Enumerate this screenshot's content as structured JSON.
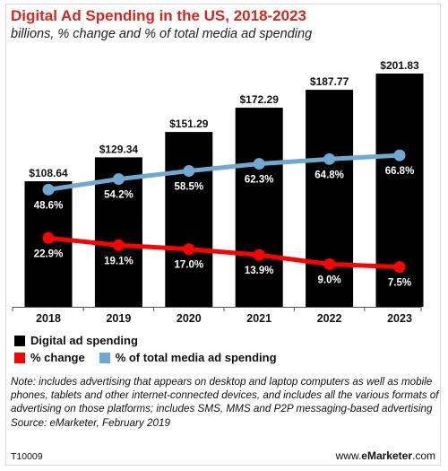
{
  "title": "Digital Ad Spending in the US, 2018-2023",
  "subtitle": "billions, % change and % of total media ad spending",
  "legend": {
    "bars": "Digital ad spending",
    "change": "% change",
    "share": "% of total media ad spending"
  },
  "colors": {
    "bar": "#000000",
    "change": "#ff0000",
    "share": "#6fa8d1",
    "title": "#d4281f"
  },
  "note": "Note: includes advertising that appears on desktop and laptop computers as well as mobile phones, tablets and other internet-connected devices, and includes all the various formats of advertising on those platforms; includes SMS, MMS and P2P messaging-based advertising",
  "source": "Source: eMarketer, February 2019",
  "footer": {
    "id": "T10009",
    "site_prefix": "www.",
    "site_brand": "eMarketer",
    "site_suffix": ".com"
  },
  "chart_data": {
    "type": "bar",
    "categories": [
      "2018",
      "2019",
      "2020",
      "2021",
      "2022",
      "2023"
    ],
    "series": [
      {
        "name": "Digital ad spending",
        "type": "bar",
        "values": [
          108.64,
          129.34,
          151.29,
          172.29,
          187.77,
          201.83
        ],
        "labels": [
          "$108.64",
          "$129.34",
          "$151.29",
          "$172.29",
          "$187.77",
          "$201.83"
        ]
      },
      {
        "name": "% change",
        "type": "line",
        "values": [
          22.9,
          19.1,
          17.0,
          13.9,
          9.0,
          7.5
        ],
        "labels": [
          "22.9%",
          "19.1%",
          "17.0%",
          "13.9%",
          "9.0%",
          "7.5%"
        ]
      },
      {
        "name": "% of total media ad spending",
        "type": "line",
        "values": [
          48.6,
          54.2,
          58.5,
          62.3,
          64.8,
          66.8
        ],
        "labels": [
          "48.6%",
          "54.2%",
          "58.5%",
          "62.3%",
          "64.8%",
          "66.8%"
        ]
      }
    ],
    "grid": false,
    "legend_position": "bottom-left"
  }
}
